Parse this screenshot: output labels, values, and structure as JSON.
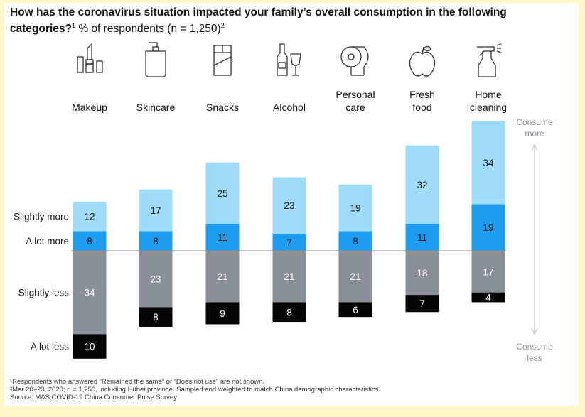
{
  "title": {
    "question": "How has the coronavirus situation impacted your family’s overall consumption in the following categories?",
    "question_sup": "1",
    "subtitle": "% of respondents (n = 1,250)",
    "subtitle_sup": "2"
  },
  "chart_data": {
    "type": "bar",
    "stacked": "diverging",
    "categories": [
      "Makeup",
      "Skincare",
      "Snacks",
      "Alcohol",
      "Personal care",
      "Fresh food",
      "Home cleaning"
    ],
    "category_labels": [
      [
        "Makeup"
      ],
      [
        "Skincare"
      ],
      [
        "Snacks"
      ],
      [
        "Alcohol"
      ],
      [
        "Personal",
        "care"
      ],
      [
        "Fresh",
        "food"
      ],
      [
        "Home",
        "cleaning"
      ]
    ],
    "icons": [
      "lipstick-icon",
      "pump-bottle-icon",
      "snack-bar-icon",
      "bottle-and-glass-icon",
      "toilet-paper-icon",
      "apple-icon",
      "spray-bottle-icon"
    ],
    "series": [
      {
        "name": "A lot more",
        "direction": "up",
        "color": "#1f9ef0",
        "text_color": "#111111",
        "values": [
          8,
          8,
          11,
          7,
          8,
          11,
          19
        ]
      },
      {
        "name": "Slightly more",
        "direction": "up",
        "color": "#9fdcf9",
        "text_color": "#111111",
        "values": [
          12,
          17,
          25,
          23,
          19,
          32,
          34
        ]
      },
      {
        "name": "Slightly less",
        "direction": "down",
        "color": "#8a9097",
        "text_color": "#ffffff",
        "values": [
          34,
          23,
          21,
          21,
          21,
          18,
          17
        ]
      },
      {
        "name": "A lot less",
        "direction": "down",
        "color": "#050505",
        "text_color": "#ffffff",
        "values": [
          10,
          8,
          9,
          8,
          6,
          7,
          4
        ]
      }
    ],
    "side_labels": {
      "more": [
        "Consume",
        "more"
      ],
      "less": [
        "Consume",
        "less"
      ]
    },
    "axis_color": "#8a9097"
  },
  "footnotes": [
    "¹Respondents who answered “Remained the same” or “Does not use” are not shown.",
    "²Mar 20–23, 2020; n = 1,250, including Hubei province. Sampled and weighted to match China demographic characteristics.",
    "Source: M&S COVID-19 China Consumer Pulse Survey"
  ]
}
